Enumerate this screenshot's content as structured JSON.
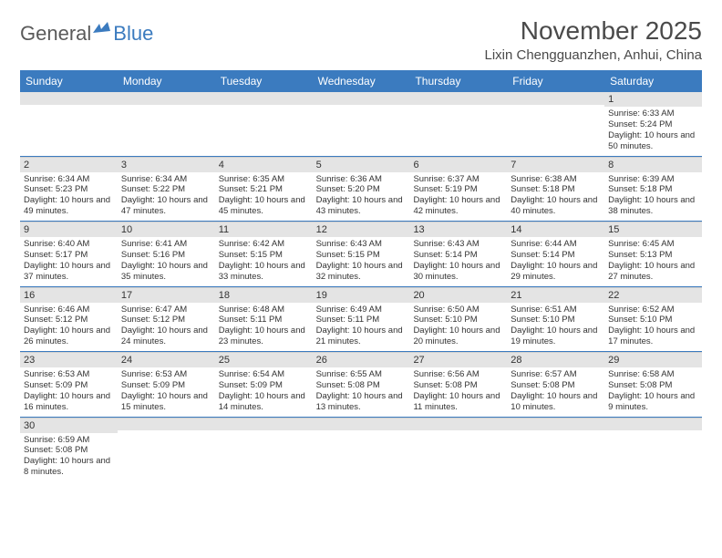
{
  "logo": {
    "text1": "General",
    "text2": "Blue"
  },
  "title": "November 2025",
  "location": "Lixin Chengguanzhen, Anhui, China",
  "colors": {
    "header_bg": "#3b7bbf",
    "header_fg": "#ffffff",
    "daynum_bg": "#e4e4e4",
    "text": "#333333",
    "row_divider": "#3b7bbf"
  },
  "fonts": {
    "title_pt": 28,
    "location_pt": 15,
    "dayhead_pt": 12,
    "daynum_pt": 11,
    "body_pt": 9.5
  },
  "day_names": [
    "Sunday",
    "Monday",
    "Tuesday",
    "Wednesday",
    "Thursday",
    "Friday",
    "Saturday"
  ],
  "weeks": [
    [
      null,
      null,
      null,
      null,
      null,
      null,
      {
        "n": "1",
        "sr": "Sunrise: 6:33 AM",
        "ss": "Sunset: 5:24 PM",
        "dl": "Daylight: 10 hours and 50 minutes."
      }
    ],
    [
      {
        "n": "2",
        "sr": "Sunrise: 6:34 AM",
        "ss": "Sunset: 5:23 PM",
        "dl": "Daylight: 10 hours and 49 minutes."
      },
      {
        "n": "3",
        "sr": "Sunrise: 6:34 AM",
        "ss": "Sunset: 5:22 PM",
        "dl": "Daylight: 10 hours and 47 minutes."
      },
      {
        "n": "4",
        "sr": "Sunrise: 6:35 AM",
        "ss": "Sunset: 5:21 PM",
        "dl": "Daylight: 10 hours and 45 minutes."
      },
      {
        "n": "5",
        "sr": "Sunrise: 6:36 AM",
        "ss": "Sunset: 5:20 PM",
        "dl": "Daylight: 10 hours and 43 minutes."
      },
      {
        "n": "6",
        "sr": "Sunrise: 6:37 AM",
        "ss": "Sunset: 5:19 PM",
        "dl": "Daylight: 10 hours and 42 minutes."
      },
      {
        "n": "7",
        "sr": "Sunrise: 6:38 AM",
        "ss": "Sunset: 5:18 PM",
        "dl": "Daylight: 10 hours and 40 minutes."
      },
      {
        "n": "8",
        "sr": "Sunrise: 6:39 AM",
        "ss": "Sunset: 5:18 PM",
        "dl": "Daylight: 10 hours and 38 minutes."
      }
    ],
    [
      {
        "n": "9",
        "sr": "Sunrise: 6:40 AM",
        "ss": "Sunset: 5:17 PM",
        "dl": "Daylight: 10 hours and 37 minutes."
      },
      {
        "n": "10",
        "sr": "Sunrise: 6:41 AM",
        "ss": "Sunset: 5:16 PM",
        "dl": "Daylight: 10 hours and 35 minutes."
      },
      {
        "n": "11",
        "sr": "Sunrise: 6:42 AM",
        "ss": "Sunset: 5:15 PM",
        "dl": "Daylight: 10 hours and 33 minutes."
      },
      {
        "n": "12",
        "sr": "Sunrise: 6:43 AM",
        "ss": "Sunset: 5:15 PM",
        "dl": "Daylight: 10 hours and 32 minutes."
      },
      {
        "n": "13",
        "sr": "Sunrise: 6:43 AM",
        "ss": "Sunset: 5:14 PM",
        "dl": "Daylight: 10 hours and 30 minutes."
      },
      {
        "n": "14",
        "sr": "Sunrise: 6:44 AM",
        "ss": "Sunset: 5:14 PM",
        "dl": "Daylight: 10 hours and 29 minutes."
      },
      {
        "n": "15",
        "sr": "Sunrise: 6:45 AM",
        "ss": "Sunset: 5:13 PM",
        "dl": "Daylight: 10 hours and 27 minutes."
      }
    ],
    [
      {
        "n": "16",
        "sr": "Sunrise: 6:46 AM",
        "ss": "Sunset: 5:12 PM",
        "dl": "Daylight: 10 hours and 26 minutes."
      },
      {
        "n": "17",
        "sr": "Sunrise: 6:47 AM",
        "ss": "Sunset: 5:12 PM",
        "dl": "Daylight: 10 hours and 24 minutes."
      },
      {
        "n": "18",
        "sr": "Sunrise: 6:48 AM",
        "ss": "Sunset: 5:11 PM",
        "dl": "Daylight: 10 hours and 23 minutes."
      },
      {
        "n": "19",
        "sr": "Sunrise: 6:49 AM",
        "ss": "Sunset: 5:11 PM",
        "dl": "Daylight: 10 hours and 21 minutes."
      },
      {
        "n": "20",
        "sr": "Sunrise: 6:50 AM",
        "ss": "Sunset: 5:10 PM",
        "dl": "Daylight: 10 hours and 20 minutes."
      },
      {
        "n": "21",
        "sr": "Sunrise: 6:51 AM",
        "ss": "Sunset: 5:10 PM",
        "dl": "Daylight: 10 hours and 19 minutes."
      },
      {
        "n": "22",
        "sr": "Sunrise: 6:52 AM",
        "ss": "Sunset: 5:10 PM",
        "dl": "Daylight: 10 hours and 17 minutes."
      }
    ],
    [
      {
        "n": "23",
        "sr": "Sunrise: 6:53 AM",
        "ss": "Sunset: 5:09 PM",
        "dl": "Daylight: 10 hours and 16 minutes."
      },
      {
        "n": "24",
        "sr": "Sunrise: 6:53 AM",
        "ss": "Sunset: 5:09 PM",
        "dl": "Daylight: 10 hours and 15 minutes."
      },
      {
        "n": "25",
        "sr": "Sunrise: 6:54 AM",
        "ss": "Sunset: 5:09 PM",
        "dl": "Daylight: 10 hours and 14 minutes."
      },
      {
        "n": "26",
        "sr": "Sunrise: 6:55 AM",
        "ss": "Sunset: 5:08 PM",
        "dl": "Daylight: 10 hours and 13 minutes."
      },
      {
        "n": "27",
        "sr": "Sunrise: 6:56 AM",
        "ss": "Sunset: 5:08 PM",
        "dl": "Daylight: 10 hours and 11 minutes."
      },
      {
        "n": "28",
        "sr": "Sunrise: 6:57 AM",
        "ss": "Sunset: 5:08 PM",
        "dl": "Daylight: 10 hours and 10 minutes."
      },
      {
        "n": "29",
        "sr": "Sunrise: 6:58 AM",
        "ss": "Sunset: 5:08 PM",
        "dl": "Daylight: 10 hours and 9 minutes."
      }
    ],
    [
      {
        "n": "30",
        "sr": "Sunrise: 6:59 AM",
        "ss": "Sunset: 5:08 PM",
        "dl": "Daylight: 10 hours and 8 minutes."
      },
      null,
      null,
      null,
      null,
      null,
      null
    ]
  ]
}
